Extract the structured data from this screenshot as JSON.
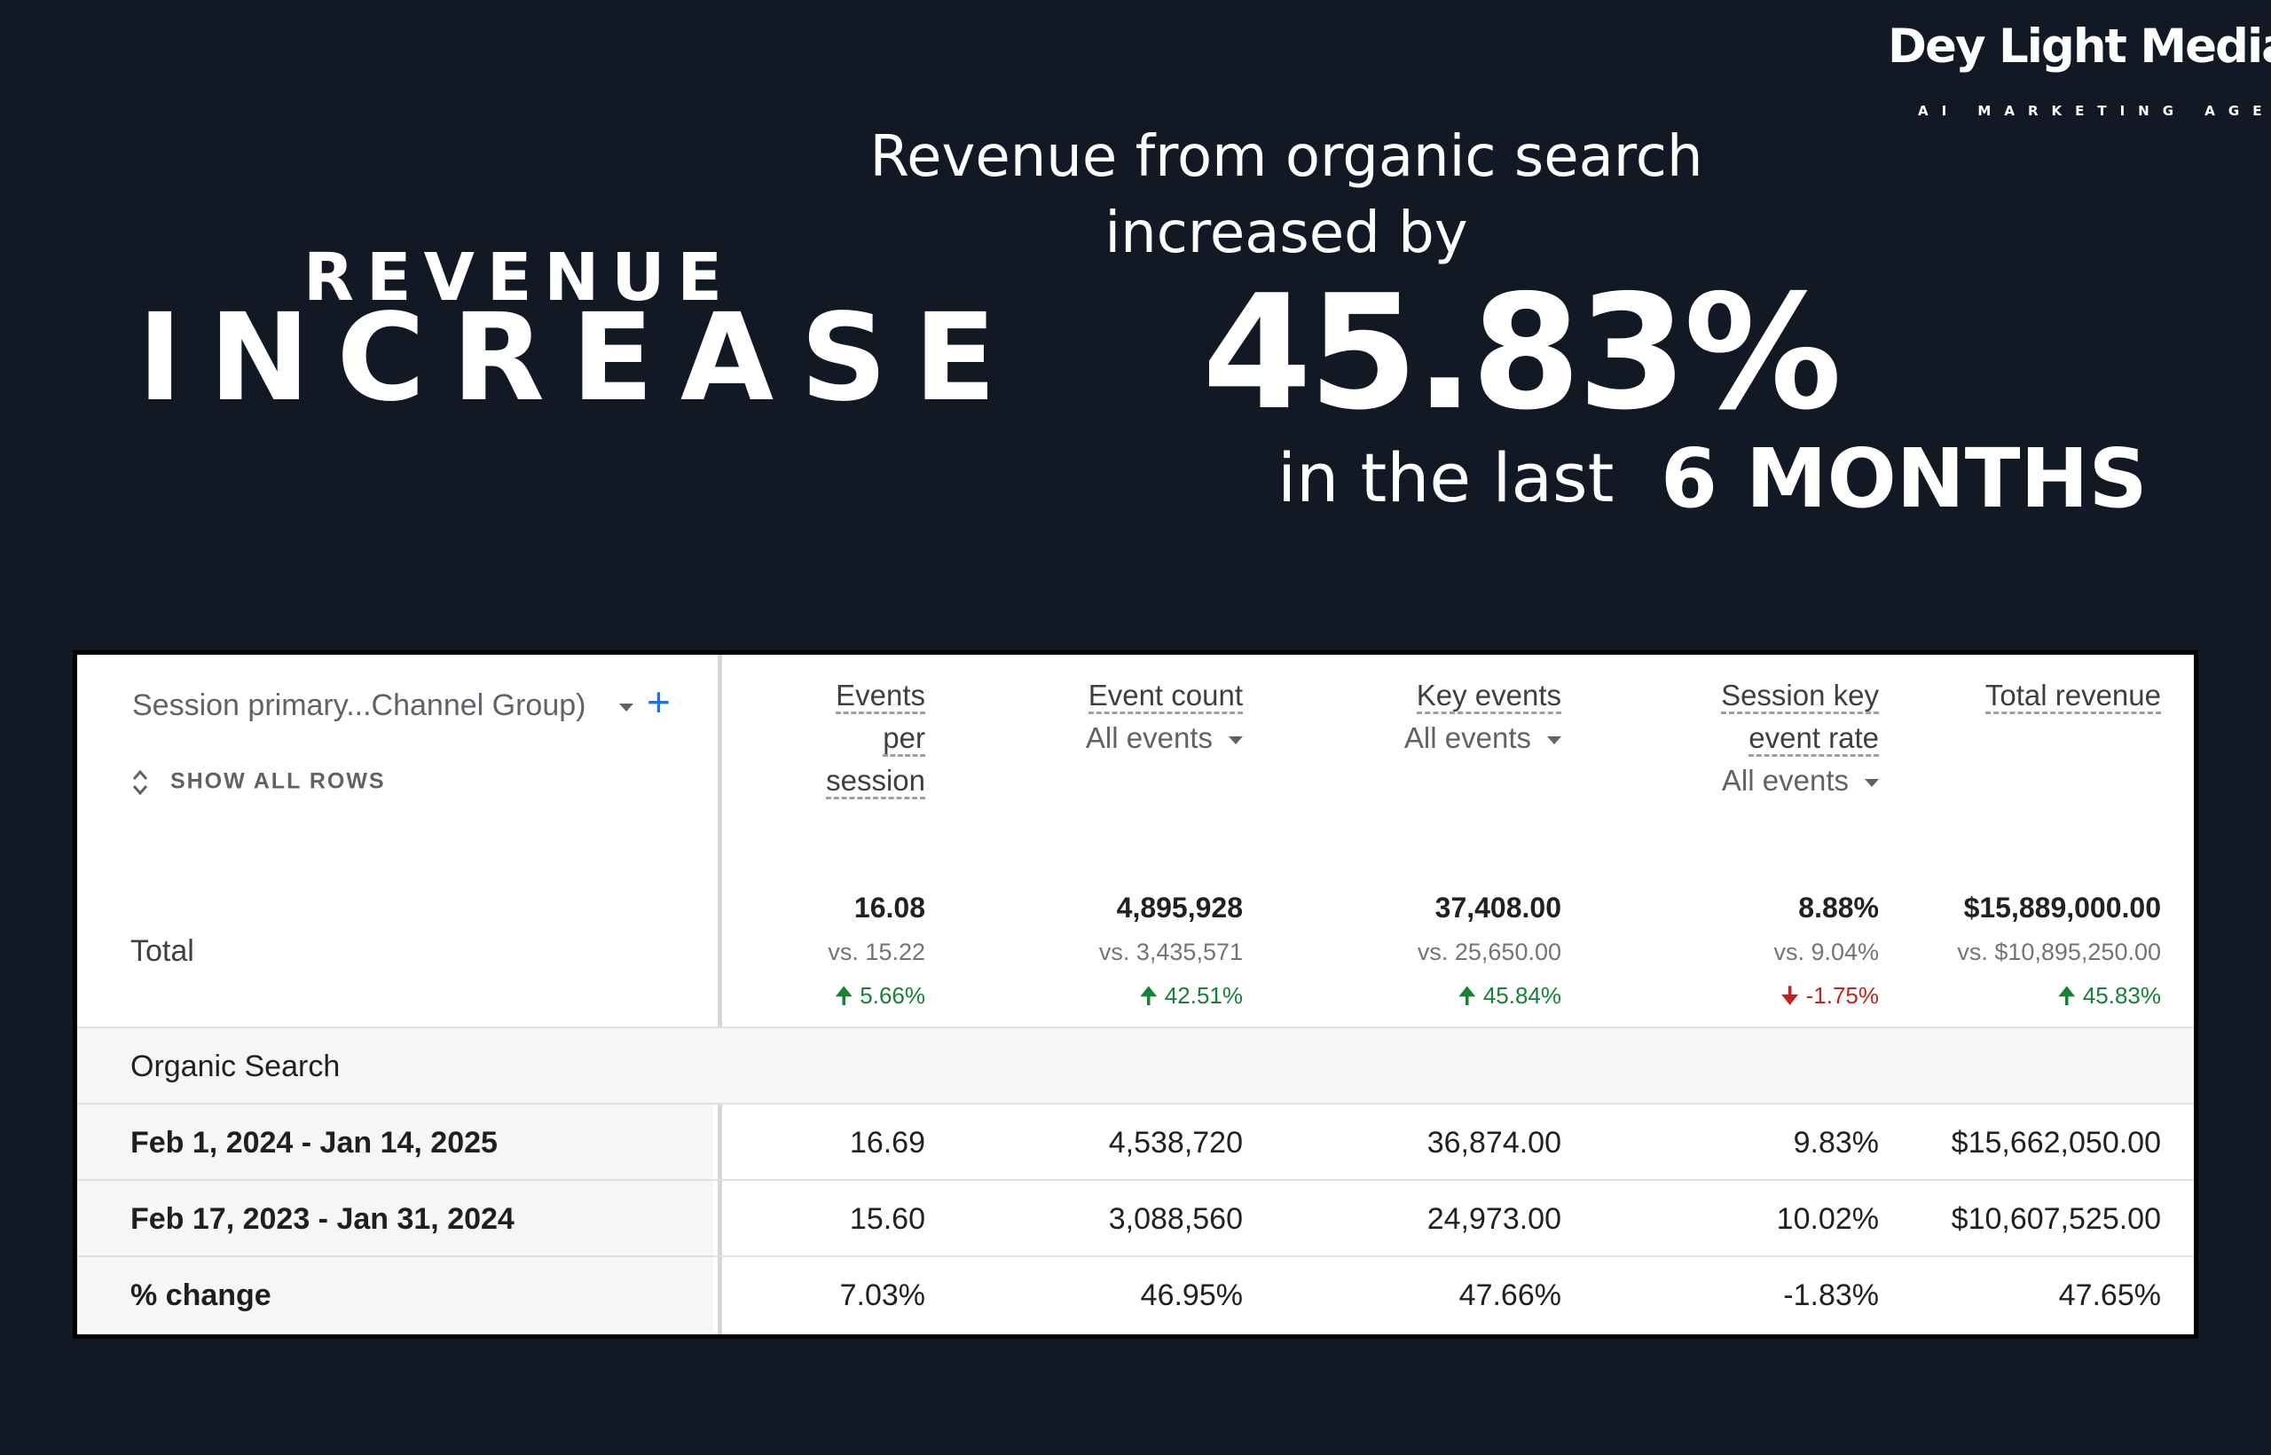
{
  "logo": {
    "title": "Dey Light Media",
    "tagline": "AI MARKETING AGENCY"
  },
  "heading": {
    "small": "REVENUE",
    "big": "INCREASE"
  },
  "headline": {
    "line1": "Revenue from organic search",
    "line2": "increased by",
    "percent": "45.83%",
    "last": "in the last",
    "period": "6 MONTHS"
  },
  "table": {
    "dimension": "Session primary...Channel Group)",
    "add_label": "+",
    "show_all": "SHOW ALL ROWS",
    "columns": [
      {
        "name1": "Events",
        "name2": "per",
        "name3": "session",
        "sub": ""
      },
      {
        "name1": "Event count",
        "name2": "",
        "name3": "",
        "sub": "All events"
      },
      {
        "name1": "Key events",
        "name2": "",
        "name3": "",
        "sub": "All events"
      },
      {
        "name1": "Session key",
        "name2": "event rate",
        "name3": "",
        "sub": "All events"
      },
      {
        "name1": "Total revenue",
        "name2": "",
        "name3": "",
        "sub": ""
      }
    ],
    "total": {
      "label": "Total",
      "values": [
        "16.08",
        "4,895,928",
        "37,408.00",
        "8.88%",
        "$15,889,000.00"
      ],
      "vs": [
        "vs. 15.22",
        "vs. 3,435,571",
        "vs. 25,650.00",
        "vs. 9.04%",
        "vs. $10,895,250.00"
      ],
      "change": [
        "5.66%",
        "42.51%",
        "45.84%",
        "-1.75%",
        "45.83%"
      ],
      "change_dir": [
        "up",
        "up",
        "up",
        "down",
        "up"
      ]
    },
    "group_label": "Organic Search",
    "rows": [
      {
        "label": "Feb 1, 2024 - Jan 14, 2025",
        "values": [
          "16.69",
          "4,538,720",
          "36,874.00",
          "9.83%",
          "$15,662,050.00"
        ]
      },
      {
        "label": "Feb 17, 2023 - Jan 31, 2024",
        "values": [
          "15.60",
          "3,088,560",
          "24,973.00",
          "10.02%",
          "$10,607,525.00"
        ]
      },
      {
        "label": "% change",
        "values": [
          "7.03%",
          "46.95%",
          "47.66%",
          "-1.83%",
          "47.65%"
        ]
      }
    ],
    "colors": {
      "up": "#188038",
      "down": "#c5221f",
      "link": "#1a73e8"
    }
  }
}
